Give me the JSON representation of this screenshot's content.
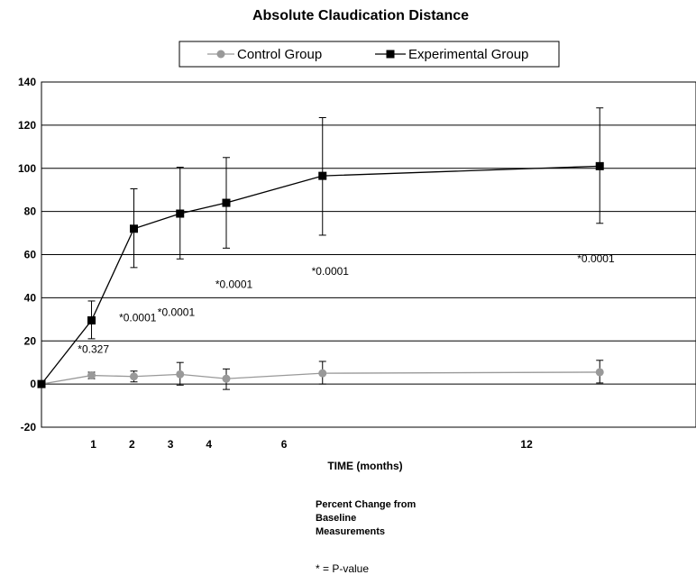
{
  "chart_data": {
    "type": "line",
    "title": "Absolute Claudication Distance",
    "xlabel": "TIME (months)",
    "ylabel": "",
    "ylim": [
      -20,
      140
    ],
    "yticks": [
      -20,
      0,
      20,
      40,
      60,
      80,
      100,
      120,
      140
    ],
    "xlim": [
      0,
      17
    ],
    "xticks": [
      {
        "x": 1.35,
        "label": "1"
      },
      {
        "x": 2.35,
        "label": "2"
      },
      {
        "x": 3.35,
        "label": "3"
      },
      {
        "x": 4.35,
        "label": "4"
      },
      {
        "x": 6.3,
        "label": "6"
      },
      {
        "x": 12.6,
        "label": "12"
      }
    ],
    "grid": true,
    "legend_position": "top",
    "series": [
      {
        "name": "Control Group",
        "color": "#999999",
        "marker": "circle",
        "points": [
          {
            "x": 0,
            "y": 0,
            "err_low": 0,
            "err_high": 0
          },
          {
            "x": 1.3,
            "y": 4,
            "err_low": 2.5,
            "err_high": 5.5
          },
          {
            "x": 2.4,
            "y": 3.5,
            "err_low": 1,
            "err_high": 6
          },
          {
            "x": 3.6,
            "y": 4.5,
            "err_low": -0.5,
            "err_high": 10
          },
          {
            "x": 4.8,
            "y": 2.5,
            "err_low": -2.5,
            "err_high": 7
          },
          {
            "x": 7.3,
            "y": 5,
            "err_low": 0,
            "err_high": 10.5
          },
          {
            "x": 14.5,
            "y": 5.5,
            "err_low": 0.5,
            "err_high": 11
          }
        ]
      },
      {
        "name": "Experimental Group",
        "color": "#000000",
        "marker": "square",
        "points": [
          {
            "x": 0,
            "y": 0,
            "err_low": 0,
            "err_high": 0
          },
          {
            "x": 1.3,
            "y": 29.5,
            "err_low": 21,
            "err_high": 38.5
          },
          {
            "x": 2.4,
            "y": 72,
            "err_low": 54,
            "err_high": 90.5
          },
          {
            "x": 3.6,
            "y": 79,
            "err_low": 58,
            "err_high": 100.5
          },
          {
            "x": 4.8,
            "y": 84,
            "err_low": 63,
            "err_high": 105
          },
          {
            "x": 7.3,
            "y": 96.5,
            "err_low": 69,
            "err_high": 123.5
          },
          {
            "x": 14.5,
            "y": 101,
            "err_low": 74.5,
            "err_high": 128
          }
        ]
      }
    ],
    "annotations": [
      {
        "text": "*0.327",
        "x": 1.35,
        "y": 14.5
      },
      {
        "text": "*0.0001",
        "x": 2.5,
        "y": 29
      },
      {
        "text": "*0.0001",
        "x": 3.5,
        "y": 31.5
      },
      {
        "text": "*0.0001",
        "x": 5.0,
        "y": 44.5
      },
      {
        "text": "*0.0001",
        "x": 7.5,
        "y": 50.5
      },
      {
        "text": "*0.0001",
        "x": 14.4,
        "y": 56.5
      }
    ],
    "notes": [
      "Percent Change from",
      "Baseline",
      "Measurements"
    ],
    "pvalue_note": "* = P-value"
  }
}
